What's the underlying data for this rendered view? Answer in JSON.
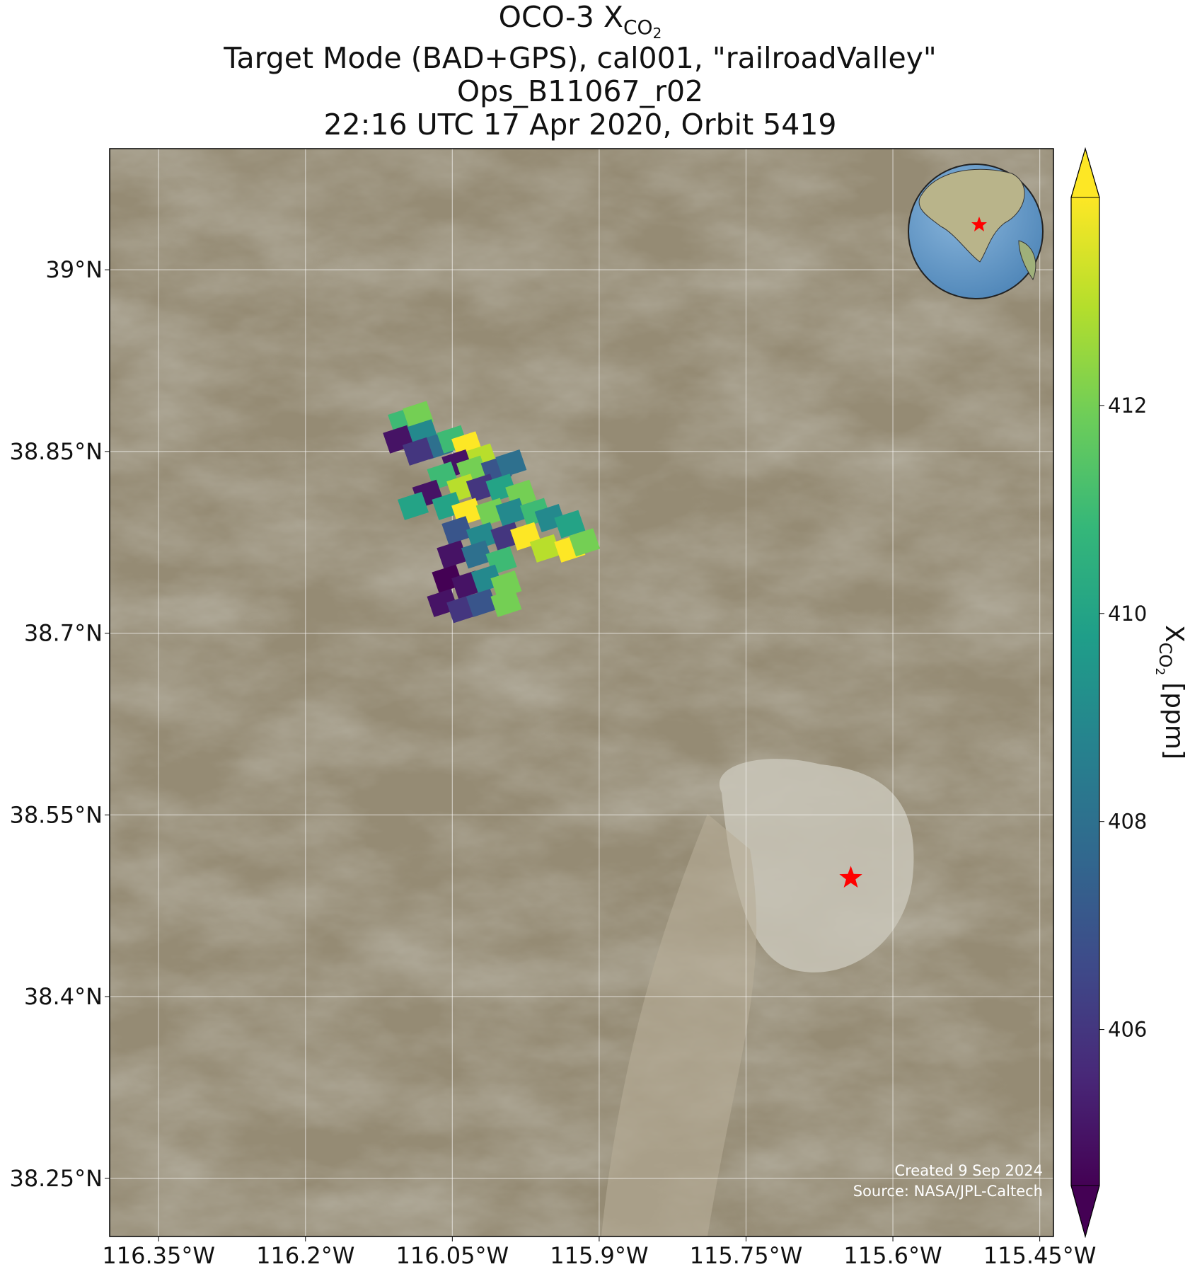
{
  "chart_data": {
    "type": "map",
    "title": "OCO-3 X",
    "title_sub": "CO",
    "title_sub_sub": "2",
    "subtitles": [
      "Target Mode (BAD+GPS), cal001, \"railroadValley\"",
      "Ops_B11067_r02",
      "22:16 UTC 17 Apr 2020, Orbit 5419"
    ],
    "xlim": [
      -116.4,
      -115.436
    ],
    "ylim": [
      38.202,
      39.1
    ],
    "xticks": [
      {
        "value": -116.35,
        "label": "116.35°W"
      },
      {
        "value": -116.2,
        "label": "116.2°W"
      },
      {
        "value": -116.05,
        "label": "116.05°W"
      },
      {
        "value": -115.9,
        "label": "115.9°W"
      },
      {
        "value": -115.75,
        "label": "115.75°W"
      },
      {
        "value": -115.6,
        "label": "115.6°W"
      },
      {
        "value": -115.45,
        "label": "115.45°W"
      }
    ],
    "yticks": [
      {
        "value": 39,
        "label": "39°N"
      },
      {
        "value": 38.85,
        "label": "38.85°N"
      },
      {
        "value": 38.7,
        "label": "38.7°N"
      },
      {
        "value": 38.55,
        "label": "38.55°N"
      },
      {
        "value": 38.4,
        "label": "38.4°N"
      },
      {
        "value": 38.25,
        "label": "38.25°N"
      }
    ],
    "grid": true,
    "colormap": "viridis",
    "clim": [
      404.5,
      414
    ],
    "cticks": [
      406,
      408,
      410,
      412
    ],
    "colorbar_label": "X",
    "colorbar_label_sub": "CO",
    "colorbar_label_sub_sub": "2",
    "colorbar_label_unit": "[ppm]",
    "footprints": {
      "lon": [
        -116.1,
        -116.085,
        -116.105,
        -116.08,
        -116.065,
        -116.085,
        -116.05,
        -116.035,
        -116.02,
        -116.045,
        -116.03,
        -116.005,
        -115.99,
        -116.06,
        -116.04,
        -116.02,
        -116.0,
        -115.98,
        -116.075,
        -116.09,
        -116.055,
        -116.035,
        -116.01,
        -115.99,
        -115.965,
        -115.95,
        -115.93,
        -116.045,
        -116.02,
        -115.995,
        -115.975,
        -115.955,
        -115.93,
        -115.915,
        -116.05,
        -116.025,
        -116.0,
        -116.055,
        -116.035,
        -116.015,
        -115.995,
        -116.06,
        -116.04,
        -116.02,
        -115.995
      ],
      "lat": [
        38.875,
        38.88,
        38.86,
        38.865,
        38.855,
        38.85,
        38.86,
        38.855,
        38.845,
        38.84,
        38.835,
        38.835,
        38.84,
        38.83,
        38.82,
        38.82,
        38.82,
        38.815,
        38.815,
        38.805,
        38.805,
        38.8,
        38.8,
        38.8,
        38.8,
        38.795,
        38.79,
        38.785,
        38.78,
        38.78,
        38.78,
        38.77,
        38.77,
        38.775,
        38.765,
        38.765,
        38.76,
        38.745,
        38.74,
        38.745,
        38.74,
        38.725,
        38.72,
        38.725,
        38.725
      ],
      "values": [
        411,
        412,
        405,
        409,
        408,
        406,
        411,
        414,
        413,
        405,
        412,
        407,
        408,
        411,
        413,
        406,
        410,
        412,
        405,
        410,
        410,
        414,
        412,
        409,
        411,
        409,
        410,
        407,
        409,
        406,
        414,
        413,
        414,
        412,
        405,
        408,
        411,
        404.5,
        405,
        409,
        412,
        405,
        406,
        407,
        412
      ]
    },
    "site": {
      "lon": -115.643,
      "lat": 38.498,
      "color": "#ff0000"
    },
    "credit": [
      "Created 9 Sep 2024",
      "Source: NASA/JPL-Caltech"
    ]
  }
}
